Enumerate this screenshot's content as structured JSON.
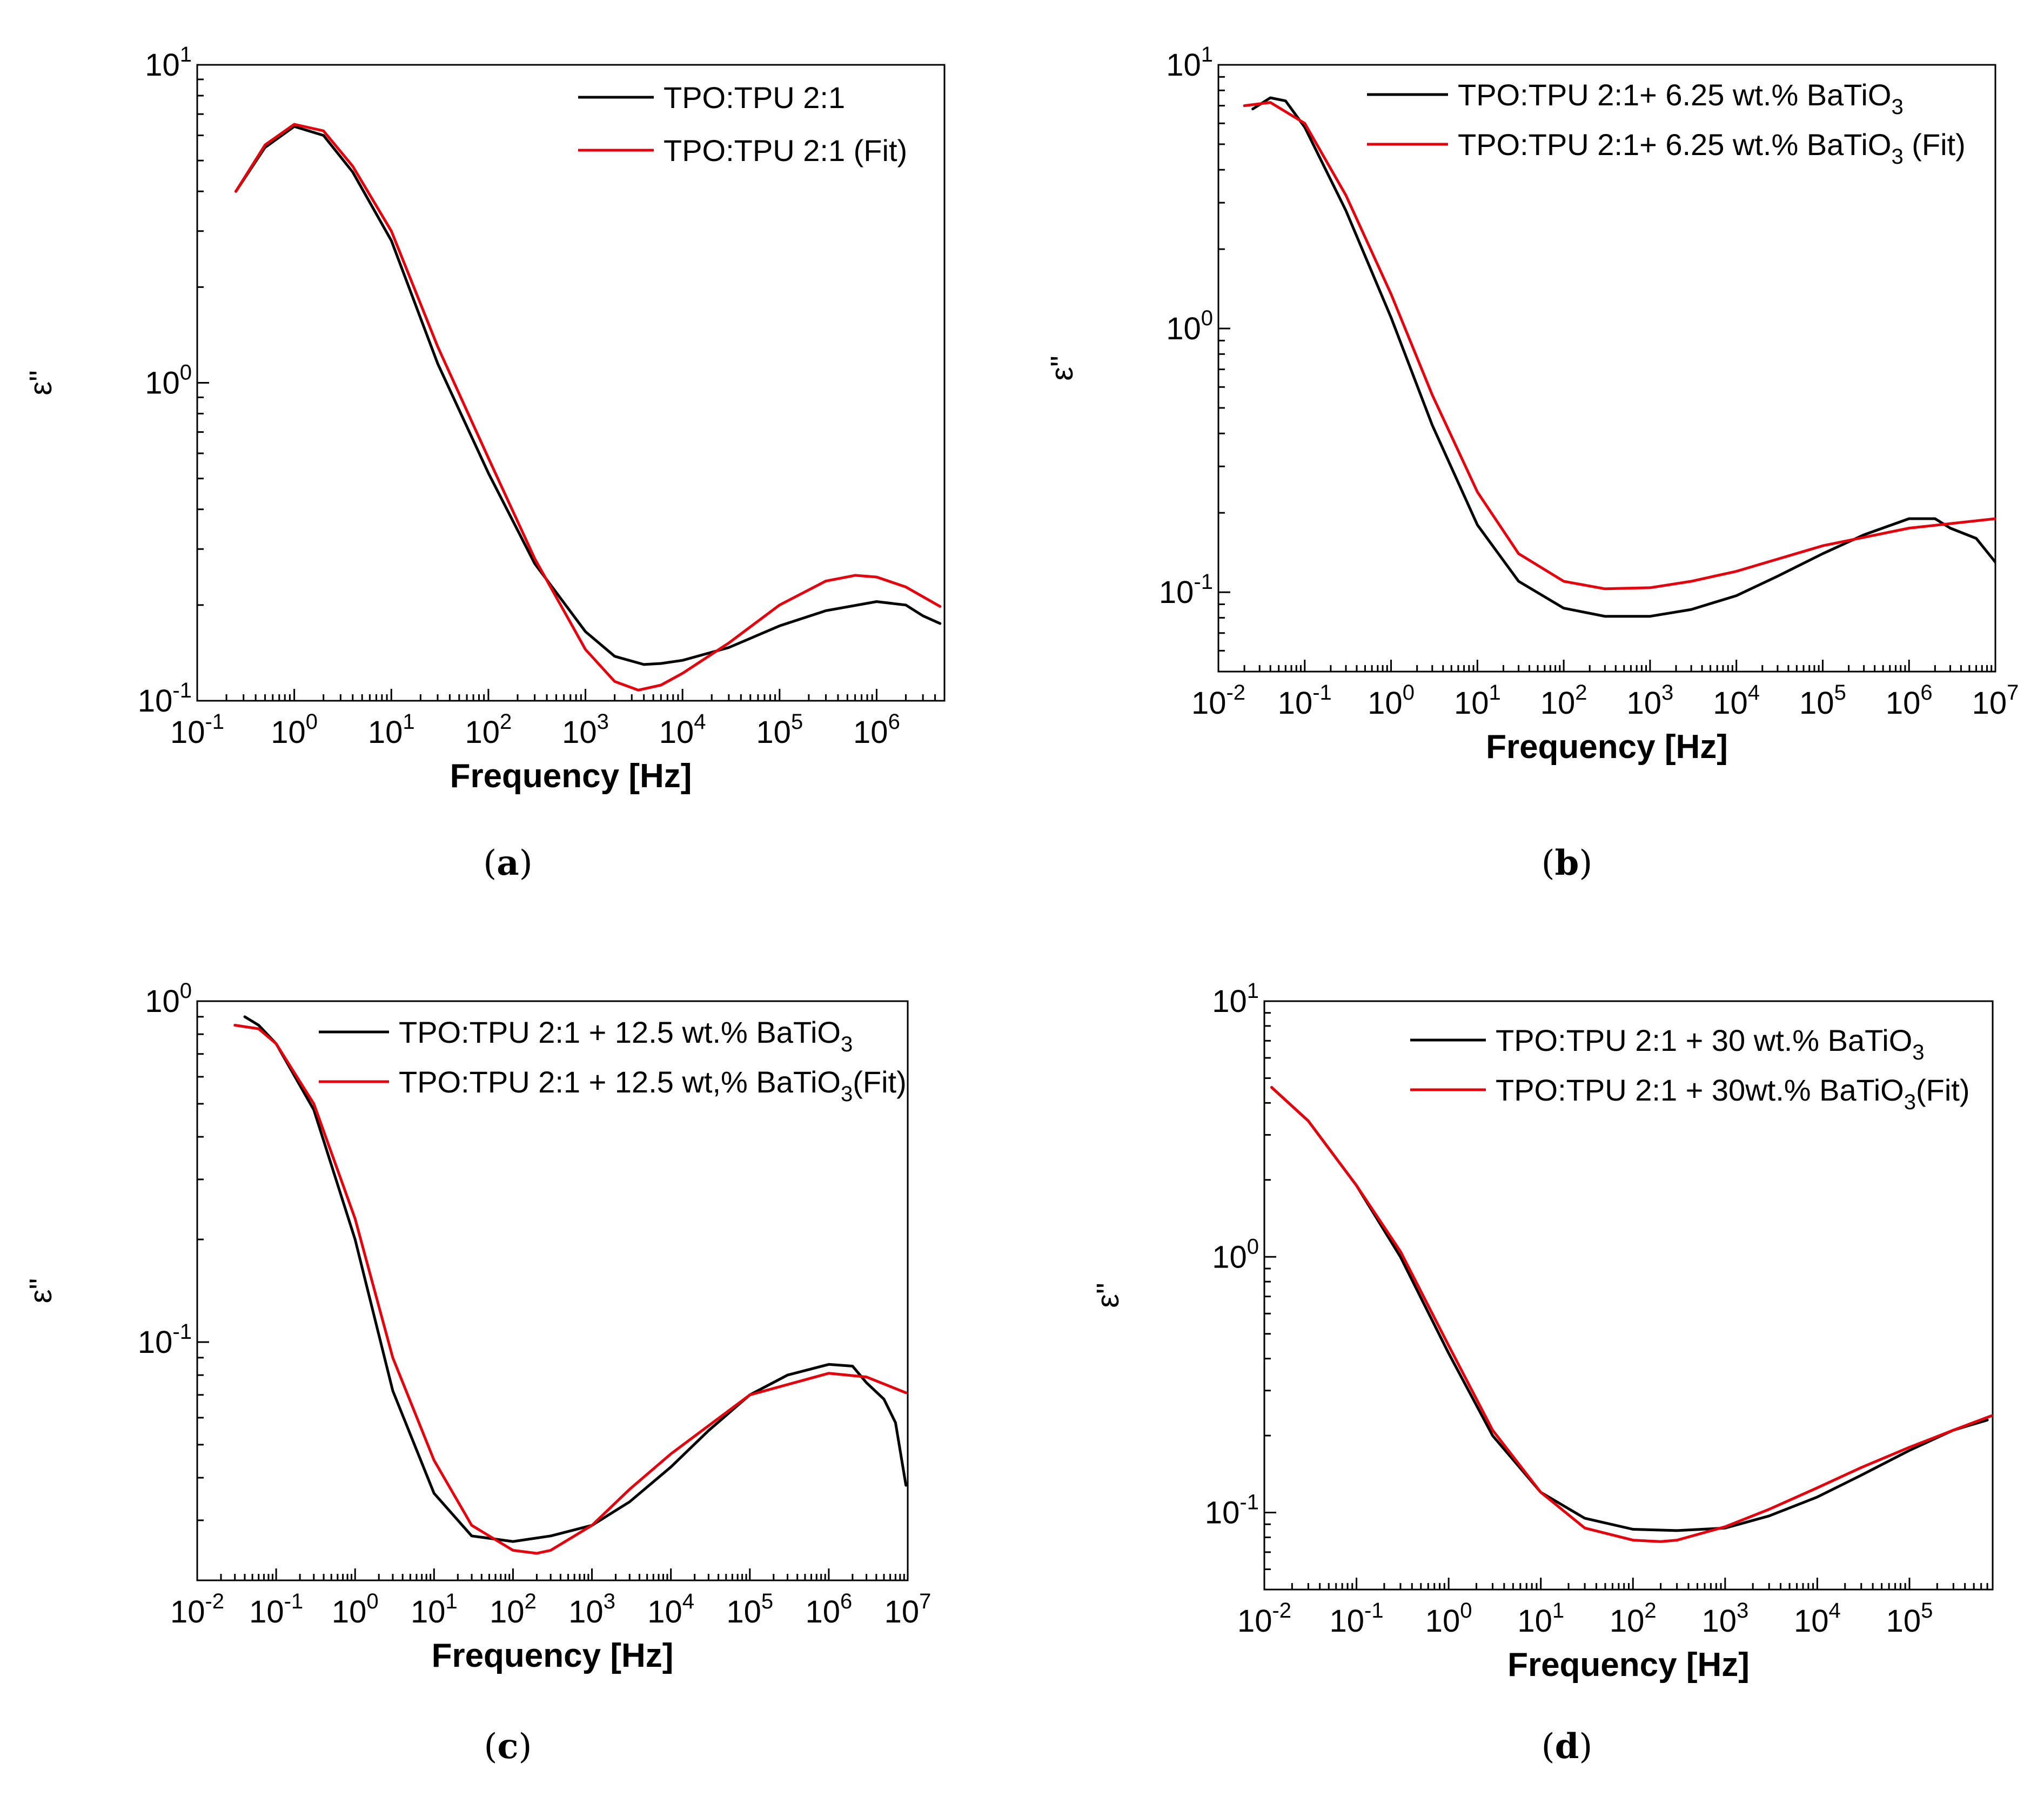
{
  "figure": {
    "colors": {
      "measured": "#000000",
      "fit": "#e8000b"
    }
  },
  "chart_data": [
    {
      "id": "a",
      "caption": "a",
      "type": "line",
      "xscale": "log",
      "yscale": "log",
      "xlabel": "Frequency [Hz]",
      "ylabel": "ε\"",
      "xlim": [
        0.1,
        5000000
      ],
      "ylim": [
        0.1,
        10
      ],
      "xtick_exponents": [
        -1,
        0,
        1,
        2,
        3,
        4,
        5,
        6
      ],
      "ytick_exponents": [
        -1,
        0,
        1
      ],
      "legend_position": "top-right",
      "series": [
        {
          "name": "TPO:TPU 2:1",
          "name_base": "TPO:TPU 2:1",
          "name_sub": "",
          "name_after": "",
          "color": "#000000",
          "x": [
            0.25,
            0.5,
            1,
            2,
            4,
            10,
            30,
            100,
            300,
            1000,
            2000,
            4000,
            6000,
            10000,
            30000,
            100000,
            300000,
            1000000,
            2000000,
            3000000,
            4500000
          ],
          "y": [
            4.0,
            5.5,
            6.4,
            6.0,
            4.6,
            2.8,
            1.15,
            0.52,
            0.27,
            0.165,
            0.138,
            0.13,
            0.131,
            0.134,
            0.147,
            0.172,
            0.192,
            0.205,
            0.2,
            0.185,
            0.175
          ]
        },
        {
          "name": "TPO:TPU 2:1 (Fit)",
          "name_base": "TPO:TPU 2:1 (Fit)",
          "name_sub": "",
          "name_after": "",
          "color": "#e8000b",
          "x": [
            0.25,
            0.5,
            1,
            2,
            4,
            10,
            30,
            100,
            300,
            1000,
            2000,
            3500,
            6000,
            10000,
            30000,
            100000,
            300000,
            600000,
            1000000,
            2000000,
            4500000
          ],
          "y": [
            4.0,
            5.6,
            6.5,
            6.2,
            4.8,
            3.0,
            1.3,
            0.58,
            0.28,
            0.145,
            0.115,
            0.108,
            0.112,
            0.122,
            0.152,
            0.2,
            0.238,
            0.248,
            0.245,
            0.228,
            0.198
          ]
        }
      ]
    },
    {
      "id": "b",
      "caption": "b",
      "type": "line",
      "xscale": "log",
      "yscale": "log",
      "xlabel": "Frequency [Hz]",
      "ylabel": "ε\"",
      "xlim": [
        0.01,
        10000000
      ],
      "ylim": [
        0.05,
        10
      ],
      "xtick_exponents": [
        -2,
        -1,
        0,
        1,
        2,
        3,
        4,
        5,
        6,
        7
      ],
      "ytick_exponents": [
        -1,
        0,
        1
      ],
      "legend_position": "top-right",
      "series": [
        {
          "name": "TPO:TPU 2:1+ 6.25 wt.% BaTiO3",
          "name_base": "TPO:TPU 2:1+ 6.25 wt.% BaTiO",
          "name_sub": "3",
          "name_after": "",
          "color": "#000000",
          "x": [
            0.025,
            0.04,
            0.06,
            0.1,
            0.3,
            1,
            3,
            10,
            30,
            100,
            300,
            1000,
            3000,
            10000,
            30000,
            100000,
            300000,
            1000000,
            2000000,
            3000000,
            6000000,
            10000000
          ],
          "y": [
            6.8,
            7.5,
            7.3,
            5.8,
            2.8,
            1.1,
            0.43,
            0.18,
            0.11,
            0.087,
            0.081,
            0.081,
            0.086,
            0.097,
            0.115,
            0.14,
            0.165,
            0.19,
            0.19,
            0.175,
            0.16,
            0.13
          ]
        },
        {
          "name": "TPO:TPU 2:1+ 6.25 wt.% BaTiO3 (Fit)",
          "name_base": "TPO:TPU 2:1+ 6.25 wt.% BaTiO",
          "name_sub": "3",
          "name_after": " (Fit)",
          "color": "#e8000b",
          "x": [
            0.02,
            0.04,
            0.1,
            0.3,
            1,
            3,
            10,
            30,
            100,
            300,
            1000,
            3000,
            10000,
            100000,
            1000000,
            10000000
          ],
          "y": [
            7.0,
            7.2,
            6.0,
            3.2,
            1.35,
            0.56,
            0.24,
            0.14,
            0.11,
            0.103,
            0.104,
            0.11,
            0.12,
            0.15,
            0.175,
            0.19
          ]
        }
      ]
    },
    {
      "id": "c",
      "caption": "c",
      "type": "line",
      "xscale": "log",
      "yscale": "log",
      "xlabel": "Frequency [Hz]",
      "ylabel": "ε\"",
      "xlim": [
        0.01,
        10000000
      ],
      "ylim": [
        0.02,
        1
      ],
      "xtick_exponents": [
        -2,
        -1,
        0,
        1,
        2,
        3,
        4,
        5,
        6,
        7
      ],
      "ytick_exponents": [
        -1,
        0
      ],
      "legend_position": "top-right",
      "series": [
        {
          "name": "TPO:TPU 2:1 + 12.5 wt.% BaTiO3",
          "name_base": "TPO:TPU 2:1 + 12.5 wt.% BaTiO",
          "name_sub": "3",
          "name_after": "",
          "color": "#000000",
          "x": [
            0.04,
            0.06,
            0.1,
            0.3,
            1,
            3,
            10,
            30,
            100,
            300,
            1000,
            3000,
            10000,
            30000,
            100000,
            300000,
            1000000,
            2000000,
            3000000,
            5000000,
            7000000,
            9500000
          ],
          "y": [
            0.9,
            0.85,
            0.75,
            0.48,
            0.2,
            0.072,
            0.036,
            0.027,
            0.026,
            0.027,
            0.029,
            0.034,
            0.043,
            0.055,
            0.07,
            0.08,
            0.086,
            0.085,
            0.076,
            0.068,
            0.058,
            0.038
          ]
        },
        {
          "name": "TPO:TPU 2:1 + 12.5 wt,% BaTiO3(Fit)",
          "name_base": "TPO:TPU 2:1 + 12.5 wt,% BaTiO",
          "name_sub": "3",
          "name_after": "(Fit)",
          "color": "#e8000b",
          "x": [
            0.03,
            0.06,
            0.1,
            0.3,
            1,
            3,
            10,
            30,
            100,
            200,
            300,
            1000,
            3000,
            10000,
            100000,
            1000000,
            3000000,
            9500000
          ],
          "y": [
            0.85,
            0.83,
            0.75,
            0.5,
            0.23,
            0.09,
            0.045,
            0.029,
            0.0245,
            0.024,
            0.0245,
            0.029,
            0.037,
            0.047,
            0.07,
            0.081,
            0.079,
            0.071
          ]
        }
      ]
    },
    {
      "id": "d",
      "caption": "d",
      "type": "line",
      "xscale": "log",
      "yscale": "log",
      "xlabel": "Frequency [Hz]",
      "ylabel": "ε\"",
      "xlim": [
        0.01,
        800000
      ],
      "ylim": [
        0.05,
        10
      ],
      "xtick_exponents": [
        -2,
        -1,
        0,
        1,
        2,
        3,
        4,
        5
      ],
      "ytick_exponents": [
        -1,
        0,
        1
      ],
      "legend_position": "top-right",
      "series": [
        {
          "name": "TPO:TPU 2:1 + 30 wt.% BaTiO3",
          "name_base": "TPO:TPU 2:1 + 30 wt.% BaTiO",
          "name_sub": "3",
          "name_after": "",
          "color": "#000000",
          "x": [
            0.012,
            0.03,
            0.1,
            0.3,
            1,
            3,
            10,
            30,
            100,
            300,
            1000,
            3000,
            10000,
            30000,
            100000,
            300000,
            700000
          ],
          "y": [
            4.6,
            3.4,
            1.9,
            1.0,
            0.42,
            0.2,
            0.12,
            0.095,
            0.086,
            0.085,
            0.087,
            0.097,
            0.115,
            0.14,
            0.175,
            0.21,
            0.23
          ]
        },
        {
          "name": "TPO:TPU 2:1 + 30wt.% BaTiO3(Fit)",
          "name_base": "TPO:TPU 2:1 + 30wt.% BaTiO",
          "name_sub": "3",
          "name_after": "(Fit)",
          "color": "#e8000b",
          "x": [
            0.012,
            0.03,
            0.1,
            0.3,
            1,
            3,
            10,
            30,
            100,
            200,
            300,
            1000,
            3000,
            10000,
            30000,
            100000,
            300000,
            800000
          ],
          "y": [
            4.6,
            3.4,
            1.9,
            1.05,
            0.45,
            0.21,
            0.12,
            0.087,
            0.078,
            0.077,
            0.078,
            0.088,
            0.103,
            0.125,
            0.15,
            0.18,
            0.21,
            0.24
          ]
        }
      ]
    }
  ]
}
